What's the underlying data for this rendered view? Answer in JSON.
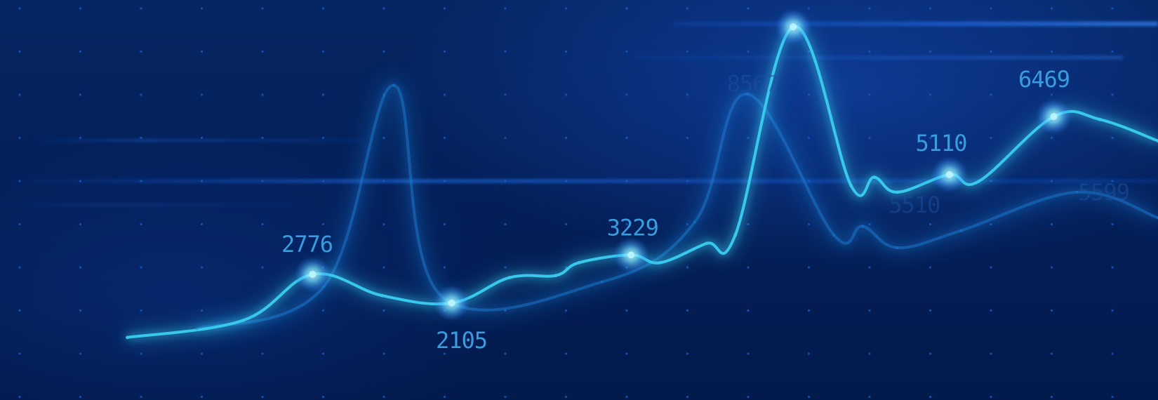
{
  "chart_data": {
    "type": "line",
    "title": "",
    "xlabel": "",
    "ylabel": "",
    "grid": "dotted",
    "legend": "none",
    "colors": {
      "primary_line": "#39c8ec",
      "secondary_line": "#1f7fd6",
      "peak_glow": "#b8f4ff",
      "label_bright": "#3ba3e6",
      "label_dim": "#1d4f9c",
      "grid_dot": "#1a5fc8",
      "glow_band": "#1d6bff"
    },
    "series": [
      {
        "values": [
          {
            "x": 0.11,
            "y": 1300
          },
          {
            "x": 0.21,
            "y": 1700
          },
          {
            "x": 0.27,
            "y": 2776
          },
          {
            "x": 0.33,
            "y": 2280
          },
          {
            "x": 0.39,
            "y": 2105
          },
          {
            "x": 0.44,
            "y": 2700
          },
          {
            "x": 0.48,
            "y": 2750
          },
          {
            "x": 0.5,
            "y": 3050
          },
          {
            "x": 0.545,
            "y": 3229
          },
          {
            "x": 0.57,
            "y": 3050
          },
          {
            "x": 0.61,
            "y": 3500
          },
          {
            "x": 0.635,
            "y": 3700
          },
          {
            "x": 0.685,
            "y": 8567
          },
          {
            "x": 0.735,
            "y": 4850
          },
          {
            "x": 0.755,
            "y": 5050
          },
          {
            "x": 0.775,
            "y": 4700
          },
          {
            "x": 0.82,
            "y": 5110
          },
          {
            "x": 0.845,
            "y": 4950
          },
          {
            "x": 0.91,
            "y": 6469
          },
          {
            "x": 0.95,
            "y": 6400
          },
          {
            "x": 1.0,
            "y": 5900
          }
        ]
      },
      {
        "values": [
          {
            "x": 0.17,
            "y": 1500
          },
          {
            "x": 0.28,
            "y": 2500
          },
          {
            "x": 0.34,
            "y": 7200
          },
          {
            "x": 0.38,
            "y": 2300
          },
          {
            "x": 0.52,
            "y": 2600
          },
          {
            "x": 0.6,
            "y": 4000
          },
          {
            "x": 0.645,
            "y": 7000
          },
          {
            "x": 0.72,
            "y": 3700
          },
          {
            "x": 0.745,
            "y": 3900
          },
          {
            "x": 0.775,
            "y": 3400
          },
          {
            "x": 0.83,
            "y": 3800
          },
          {
            "x": 0.93,
            "y": 4700
          },
          {
            "x": 1.0,
            "y": 4100
          }
        ]
      }
    ],
    "ylim": [
      0,
      9000
    ],
    "annotations": [
      {
        "text": "2776",
        "emphasis": "bright"
      },
      {
        "text": "2105",
        "emphasis": "bright"
      },
      {
        "text": "3229",
        "emphasis": "bright"
      },
      {
        "text": "8567",
        "emphasis": "dim"
      },
      {
        "text": "5110",
        "emphasis": "bright"
      },
      {
        "text": "6469",
        "emphasis": "bright"
      },
      {
        "text": "5599",
        "emphasis": "dim"
      },
      {
        "text": "5510",
        "emphasis": "dim"
      }
    ]
  }
}
